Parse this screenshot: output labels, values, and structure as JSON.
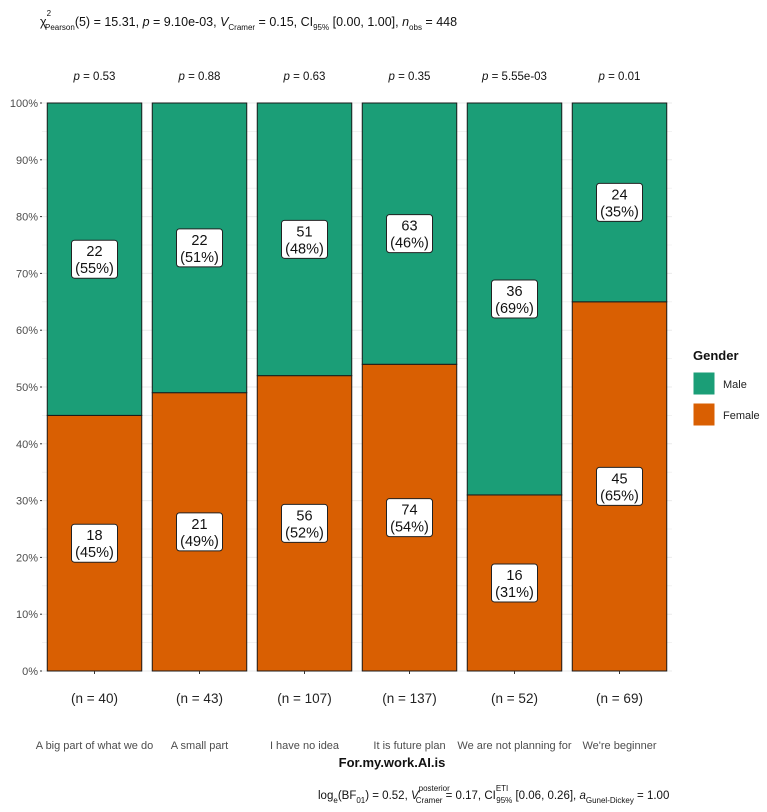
{
  "chart_data": {
    "type": "bar",
    "stacked": true,
    "normalized": true,
    "title": "χ²Pearson(5) = 15.31, p = 9.10e-03, V̂Cramer = 0.15, CI95% [0.00, 1.00], nobs = 448",
    "xlabel": "For.my.work.AI.is",
    "ylabel": "",
    "ylim": [
      0,
      100
    ],
    "yticks": [
      "0%",
      "10%",
      "20%",
      "30%",
      "40%",
      "50%",
      "60%",
      "70%",
      "80%",
      "90%",
      "100%"
    ],
    "categories": [
      "A big part of what we do",
      "A small part",
      "I have no idea",
      "It is future plan",
      "We are not planning for",
      "We're beginner"
    ],
    "n_labels": [
      "(n = 40)",
      "(n = 43)",
      "(n = 107)",
      "(n = 137)",
      "(n = 52)",
      "(n = 69)"
    ],
    "p_labels": [
      "p = 0.53",
      "p = 0.88",
      "p = 0.63",
      "p = 0.35",
      "p = 5.55e-03",
      "p = 0.01"
    ],
    "series": [
      {
        "name": "Female",
        "color": "#D95F02",
        "counts": [
          18,
          21,
          56,
          74,
          16,
          45
        ],
        "percent": [
          45,
          49,
          52,
          54,
          31,
          65
        ],
        "labels_count": [
          "18",
          "21",
          "56",
          "74",
          "16",
          "45"
        ],
        "labels_pct": [
          "(45%)",
          "(49%)",
          "(52%)",
          "(54%)",
          "(31%)",
          "(65%)"
        ]
      },
      {
        "name": "Male",
        "color": "#1B9E77",
        "counts": [
          22,
          22,
          51,
          63,
          36,
          24
        ],
        "percent": [
          55,
          51,
          48,
          46,
          69,
          35
        ],
        "labels_count": [
          "22",
          "22",
          "51",
          "63",
          "36",
          "24"
        ],
        "labels_pct": [
          "(55%)",
          "(51%)",
          "(48%)",
          "(46%)",
          "(69%)",
          "(35%)"
        ]
      }
    ],
    "legend": {
      "title": "Gender",
      "position": "right",
      "entries": [
        "Male",
        "Female"
      ]
    },
    "caption": "loge(BF01) = 0.52, V̂posteriorCramer = 0.17, CIETI95% [0.06, 0.26], aGunel-Dickey = 1.00"
  },
  "title_parts": {
    "chi": "χ",
    "chi_sup": "2",
    "chi_sub": "Pearson",
    "chi_rest": "(5) = 15.31, ",
    "p_sym": "p",
    "p_rest": " = 9.10e-03, ",
    "v_sym": "V",
    "v_hat": "^",
    "v_sub": "Cramer",
    "v_rest": " = 0.15, CI",
    "ci_sub": "95%",
    "ci_rest": " [0.00, 1.00], ",
    "n_sym": "n",
    "n_sub": "obs",
    "n_rest": " = 448"
  },
  "caption_parts": {
    "log": "log",
    "log_sub": "e",
    "bf": "(BF",
    "bf_sub": "01",
    "bf_rest": ") = 0.52, ",
    "v_sym": "V",
    "v_hat": "^",
    "v_sup": "posterior",
    "v_sub": "Cramer",
    "v_rest": " = 0.17, CI",
    "ci_sup": "ETI",
    "ci_sub": "95%",
    "ci_rest": " [0.06, 0.26], ",
    "a_sym": "a",
    "a_sub": "Gunel-Dickey",
    "a_rest": " = 1.00"
  },
  "colors": {
    "male": "#1B9E77",
    "female": "#D95F02",
    "grid": "#ebebeb"
  }
}
